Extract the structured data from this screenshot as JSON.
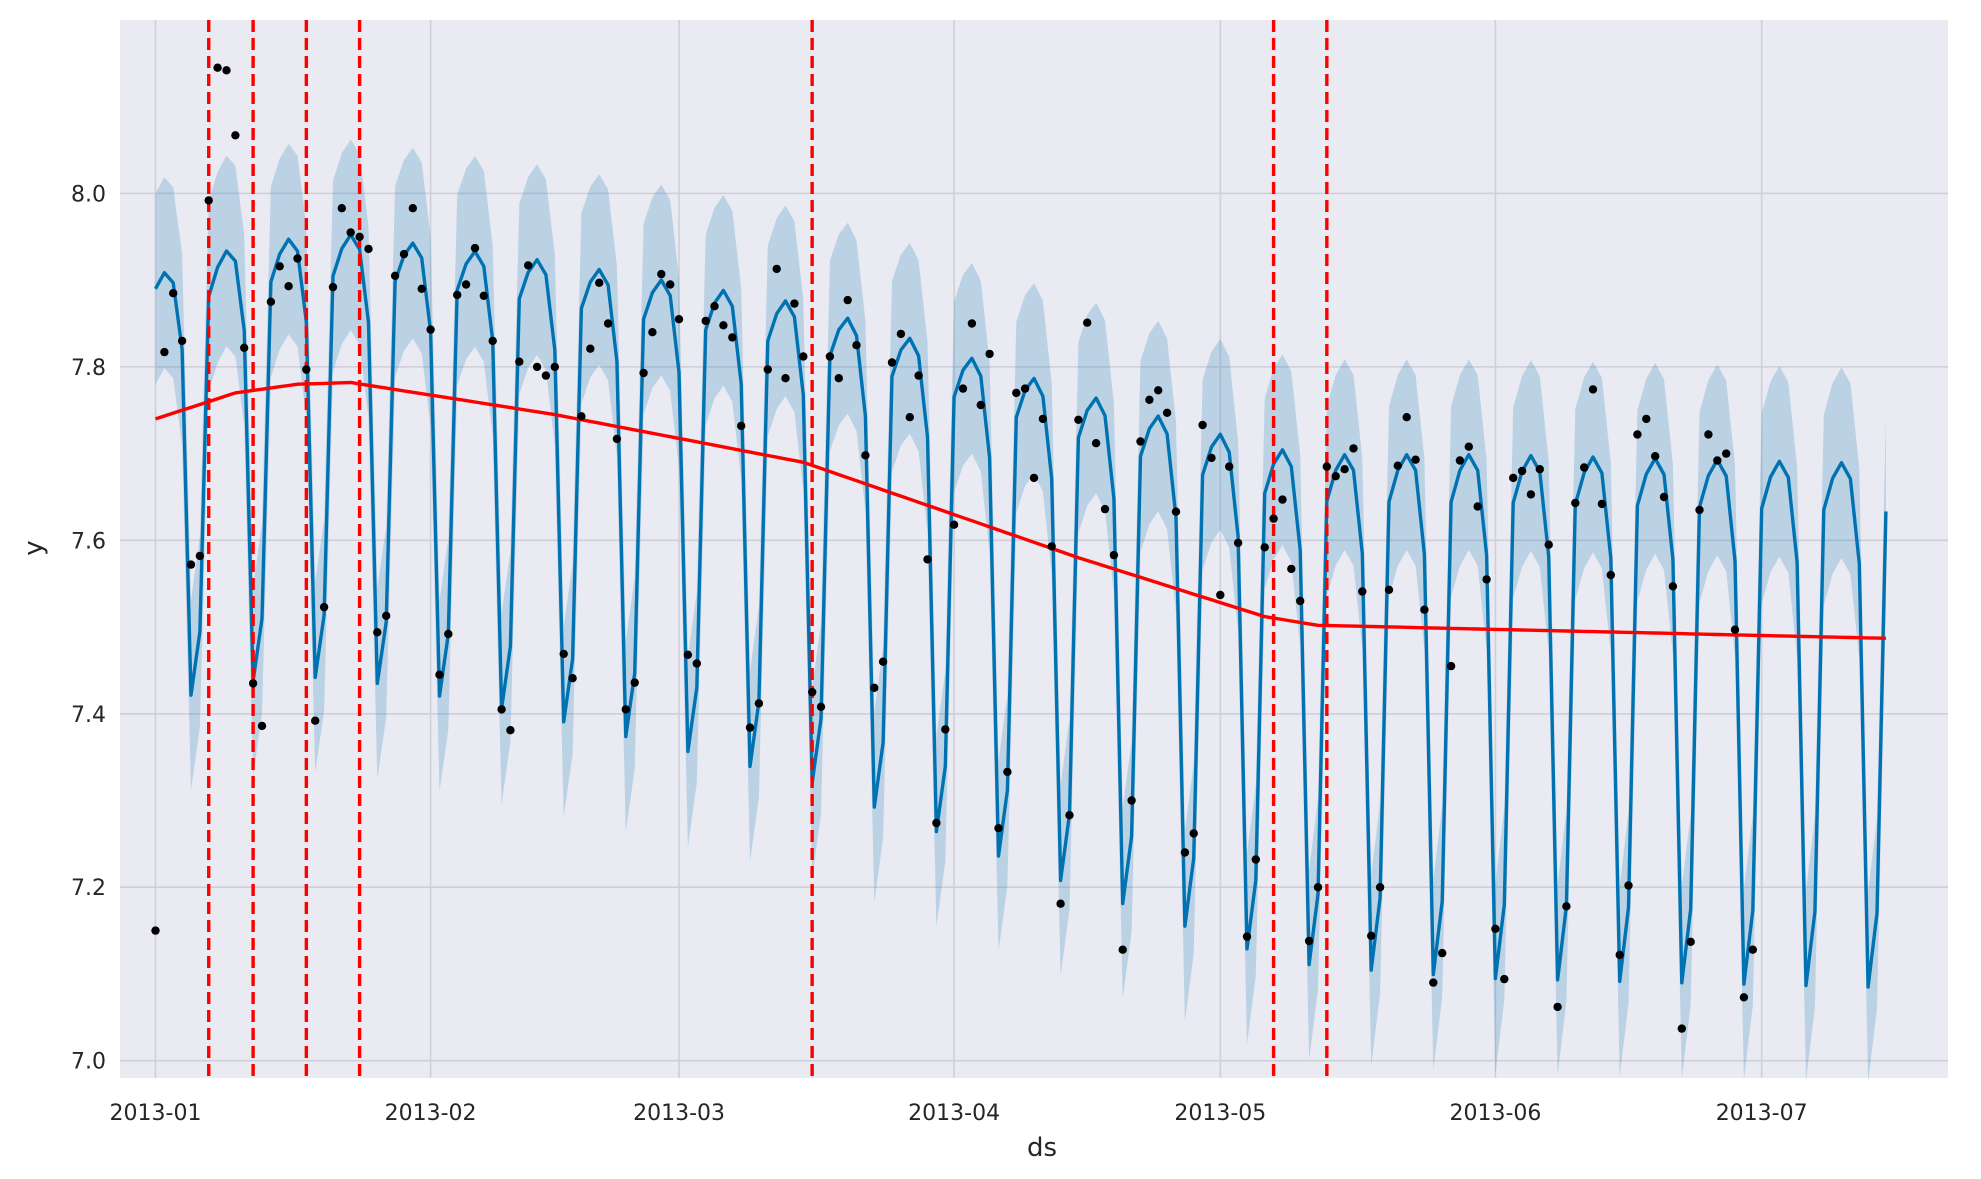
{
  "chart_data": {
    "type": "line",
    "title": "",
    "xlabel": "ds",
    "ylabel": "y",
    "xlim": [
      "2012-12-28",
      "2013-07-22"
    ],
    "ylim": [
      6.98,
      8.2
    ],
    "grid": true,
    "x_ticks": [
      "2013-01",
      "2013-02",
      "2013-03",
      "2013-04",
      "2013-05",
      "2013-06",
      "2013-07"
    ],
    "y_ticks": [
      "7.0",
      "7.2",
      "7.4",
      "7.6",
      "7.8",
      "8.0"
    ],
    "colors": {
      "background": "#EAEAF2",
      "grid": "#cfcfd8",
      "forecast": "#0072B2",
      "interval": "#0072B2",
      "trend": "#FF0000",
      "changepoints": "#FF0000",
      "observed": "#000000"
    },
    "trend": {
      "points": [
        [
          "2013-01-01",
          7.74
        ],
        [
          "2013-01-10",
          7.77
        ],
        [
          "2013-01-17",
          7.78
        ],
        [
          "2013-01-23",
          7.782
        ],
        [
          "2013-02-15",
          7.745
        ],
        [
          "2013-03-15",
          7.69
        ],
        [
          "2013-04-15",
          7.58
        ],
        [
          "2013-05-06",
          7.512
        ],
        [
          "2013-05-12",
          7.502
        ],
        [
          "2013-07-15",
          7.487
        ]
      ]
    },
    "changepoints": [
      "2013-01-07",
      "2013-01-12",
      "2013-01-18",
      "2013-01-24",
      "2013-03-16",
      "2013-05-07",
      "2013-05-13"
    ],
    "forecast": {
      "start": "2013-01-01",
      "end": "2013-07-15",
      "weekly_offsets": [
        0.15,
        0.165,
        0.15,
        0.07,
        -0.33,
        -0.26,
        0.12
      ],
      "interval_halfwidth": 0.11
    },
    "observed": [
      [
        "2013-01-01",
        7.15
      ],
      [
        "2013-01-02",
        7.817
      ],
      [
        "2013-01-03",
        7.885
      ],
      [
        "2013-01-04",
        7.83
      ],
      [
        "2013-01-05",
        7.572
      ],
      [
        "2013-01-06",
        7.582
      ],
      [
        "2013-01-07",
        7.992
      ],
      [
        "2013-01-08",
        8.145
      ],
      [
        "2013-01-09",
        8.142
      ],
      [
        "2013-01-10",
        8.067
      ],
      [
        "2013-01-11",
        7.822
      ],
      [
        "2013-01-12",
        7.435
      ],
      [
        "2013-01-13",
        7.386
      ],
      [
        "2013-01-14",
        7.875
      ],
      [
        "2013-01-15",
        7.916
      ],
      [
        "2013-01-16",
        7.893
      ],
      [
        "2013-01-17",
        7.925
      ],
      [
        "2013-01-18",
        7.797
      ],
      [
        "2013-01-19",
        7.392
      ],
      [
        "2013-01-20",
        7.523
      ],
      [
        "2013-01-21",
        7.892
      ],
      [
        "2013-01-22",
        7.983
      ],
      [
        "2013-01-23",
        7.955
      ],
      [
        "2013-01-24",
        7.95
      ],
      [
        "2013-01-25",
        7.936
      ],
      [
        "2013-01-26",
        7.494
      ],
      [
        "2013-01-27",
        7.513
      ],
      [
        "2013-01-28",
        7.905
      ],
      [
        "2013-01-29",
        7.93
      ],
      [
        "2013-01-30",
        7.983
      ],
      [
        "2013-01-31",
        7.89
      ],
      [
        "2013-02-01",
        7.843
      ],
      [
        "2013-02-02",
        7.445
      ],
      [
        "2013-02-03",
        7.492
      ],
      [
        "2013-02-04",
        7.883
      ],
      [
        "2013-02-05",
        7.895
      ],
      [
        "2013-02-06",
        7.937
      ],
      [
        "2013-02-07",
        7.882
      ],
      [
        "2013-02-08",
        7.83
      ],
      [
        "2013-02-09",
        7.405
      ],
      [
        "2013-02-10",
        7.381
      ],
      [
        "2013-02-11",
        7.806
      ],
      [
        "2013-02-12",
        7.917
      ],
      [
        "2013-02-13",
        7.8
      ],
      [
        "2013-02-14",
        7.79
      ],
      [
        "2013-02-15",
        7.8
      ],
      [
        "2013-02-16",
        7.469
      ],
      [
        "2013-02-17",
        7.441
      ],
      [
        "2013-02-18",
        7.743
      ],
      [
        "2013-02-19",
        7.821
      ],
      [
        "2013-02-20",
        7.897
      ],
      [
        "2013-02-21",
        7.85
      ],
      [
        "2013-02-22",
        7.717
      ],
      [
        "2013-02-23",
        7.405
      ],
      [
        "2013-02-24",
        7.436
      ],
      [
        "2013-02-25",
        7.793
      ],
      [
        "2013-02-26",
        7.84
      ],
      [
        "2013-02-27",
        7.907
      ],
      [
        "2013-02-28",
        7.895
      ],
      [
        "2013-03-01",
        7.855
      ],
      [
        "2013-03-02",
        7.468
      ],
      [
        "2013-03-03",
        7.458
      ],
      [
        "2013-03-04",
        7.853
      ],
      [
        "2013-03-05",
        7.87
      ],
      [
        "2013-03-06",
        7.848
      ],
      [
        "2013-03-07",
        7.834
      ],
      [
        "2013-03-08",
        7.732
      ],
      [
        "2013-03-09",
        7.384
      ],
      [
        "2013-03-10",
        7.412
      ],
      [
        "2013-03-11",
        7.797
      ],
      [
        "2013-03-12",
        7.913
      ],
      [
        "2013-03-13",
        7.787
      ],
      [
        "2013-03-14",
        7.873
      ],
      [
        "2013-03-15",
        7.812
      ],
      [
        "2013-03-16",
        7.425
      ],
      [
        "2013-03-17",
        7.408
      ],
      [
        "2013-03-18",
        7.812
      ],
      [
        "2013-03-19",
        7.787
      ],
      [
        "2013-03-20",
        7.877
      ],
      [
        "2013-03-21",
        7.825
      ],
      [
        "2013-03-22",
        7.698
      ],
      [
        "2013-03-23",
        7.43
      ],
      [
        "2013-03-24",
        7.46
      ],
      [
        "2013-03-25",
        7.805
      ],
      [
        "2013-03-26",
        7.838
      ],
      [
        "2013-03-27",
        7.742
      ],
      [
        "2013-03-28",
        7.79
      ],
      [
        "2013-03-29",
        7.578
      ],
      [
        "2013-03-30",
        7.274
      ],
      [
        "2013-03-31",
        7.382
      ],
      [
        "2013-04-01",
        7.618
      ],
      [
        "2013-04-02",
        7.775
      ],
      [
        "2013-04-03",
        7.85
      ],
      [
        "2013-04-04",
        7.756
      ],
      [
        "2013-04-05",
        7.815
      ],
      [
        "2013-04-06",
        7.268
      ],
      [
        "2013-04-07",
        7.333
      ],
      [
        "2013-04-08",
        7.77
      ],
      [
        "2013-04-09",
        7.775
      ],
      [
        "2013-04-10",
        7.672
      ],
      [
        "2013-04-11",
        7.74
      ],
      [
        "2013-04-12",
        7.593
      ],
      [
        "2013-04-13",
        7.181
      ],
      [
        "2013-04-14",
        7.283
      ],
      [
        "2013-04-15",
        7.739
      ],
      [
        "2013-04-16",
        7.851
      ],
      [
        "2013-04-17",
        7.712
      ],
      [
        "2013-04-18",
        7.636
      ],
      [
        "2013-04-19",
        7.583
      ],
      [
        "2013-04-20",
        7.128
      ],
      [
        "2013-04-21",
        7.3
      ],
      [
        "2013-04-22",
        7.714
      ],
      [
        "2013-04-23",
        7.762
      ],
      [
        "2013-04-24",
        7.773
      ],
      [
        "2013-04-25",
        7.747
      ],
      [
        "2013-04-26",
        7.633
      ],
      [
        "2013-04-27",
        7.24
      ],
      [
        "2013-04-28",
        7.262
      ],
      [
        "2013-04-29",
        7.733
      ],
      [
        "2013-04-30",
        7.695
      ],
      [
        "2013-05-01",
        7.537
      ],
      [
        "2013-05-02",
        7.685
      ],
      [
        "2013-05-03",
        7.597
      ],
      [
        "2013-05-04",
        7.143
      ],
      [
        "2013-05-05",
        7.232
      ],
      [
        "2013-05-06",
        7.592
      ],
      [
        "2013-05-07",
        7.625
      ],
      [
        "2013-05-08",
        7.647
      ],
      [
        "2013-05-09",
        7.567
      ],
      [
        "2013-05-10",
        7.53
      ],
      [
        "2013-05-11",
        7.138
      ],
      [
        "2013-05-12",
        7.2
      ],
      [
        "2013-05-13",
        7.685
      ],
      [
        "2013-05-14",
        7.674
      ],
      [
        "2013-05-15",
        7.682
      ],
      [
        "2013-05-16",
        7.706
      ],
      [
        "2013-05-17",
        7.541
      ],
      [
        "2013-05-18",
        7.144
      ],
      [
        "2013-05-19",
        7.2
      ],
      [
        "2013-05-20",
        7.543
      ],
      [
        "2013-05-21",
        7.686
      ],
      [
        "2013-05-22",
        7.742
      ],
      [
        "2013-05-23",
        7.693
      ],
      [
        "2013-05-24",
        7.52
      ],
      [
        "2013-05-25",
        7.09
      ],
      [
        "2013-05-26",
        7.124
      ],
      [
        "2013-05-27",
        7.455
      ],
      [
        "2013-05-28",
        7.692
      ],
      [
        "2013-05-29",
        7.708
      ],
      [
        "2013-05-30",
        7.639
      ],
      [
        "2013-05-31",
        7.555
      ],
      [
        "2013-06-01",
        7.152
      ],
      [
        "2013-06-02",
        7.094
      ],
      [
        "2013-06-03",
        7.672
      ],
      [
        "2013-06-04",
        7.68
      ],
      [
        "2013-06-05",
        7.653
      ],
      [
        "2013-06-06",
        7.682
      ],
      [
        "2013-06-07",
        7.595
      ],
      [
        "2013-06-08",
        7.062
      ],
      [
        "2013-06-09",
        7.178
      ],
      [
        "2013-06-10",
        7.643
      ],
      [
        "2013-06-11",
        7.684
      ],
      [
        "2013-06-12",
        7.774
      ],
      [
        "2013-06-13",
        7.642
      ],
      [
        "2013-06-14",
        7.56
      ],
      [
        "2013-06-15",
        7.122
      ],
      [
        "2013-06-16",
        7.202
      ],
      [
        "2013-06-17",
        7.722
      ],
      [
        "2013-06-18",
        7.74
      ],
      [
        "2013-06-19",
        7.697
      ],
      [
        "2013-06-20",
        7.65
      ],
      [
        "2013-06-21",
        7.547
      ],
      [
        "2013-06-22",
        7.037
      ],
      [
        "2013-06-23",
        7.137
      ],
      [
        "2013-06-24",
        7.635
      ],
      [
        "2013-06-25",
        7.722
      ],
      [
        "2013-06-26",
        7.692
      ],
      [
        "2013-06-27",
        7.7
      ],
      [
        "2013-06-28",
        7.497
      ],
      [
        "2013-06-29",
        7.073
      ],
      [
        "2013-06-30",
        7.128
      ]
    ]
  }
}
